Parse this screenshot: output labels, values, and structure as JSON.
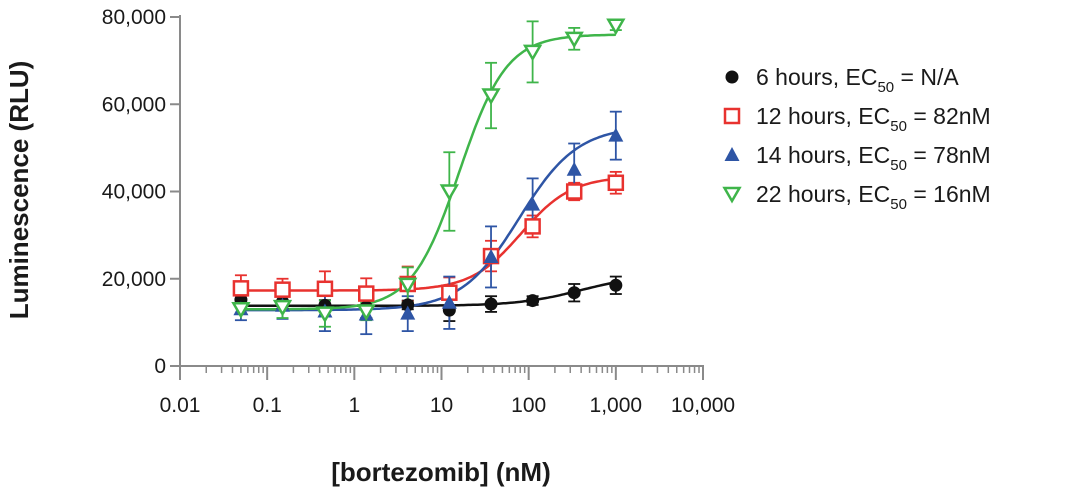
{
  "chart_data": {
    "type": "scatter",
    "xlabel": "[bortezomib] (nM)",
    "ylabel": "Luminescence (RLU)",
    "x_scale": "log",
    "xlim": [
      0.01,
      10000
    ],
    "ylim": [
      0,
      80000
    ],
    "x_ticks": [
      0.01,
      0.1,
      1,
      10,
      100,
      1000,
      10000
    ],
    "x_tick_labels": [
      "0.01",
      "0.1",
      "1",
      "10",
      "100",
      "1,000",
      "10,000"
    ],
    "y_ticks": [
      0,
      20000,
      40000,
      60000,
      80000
    ],
    "y_tick_labels": [
      "0",
      "20,000",
      "40,000",
      "60,000",
      "80,000"
    ],
    "grid": false,
    "legend_position": "right",
    "x": [
      0.05,
      0.15,
      0.46,
      1.37,
      4.1,
      12.3,
      37,
      111,
      333,
      1000
    ],
    "series": [
      {
        "name": "6 hours, EC50 = N/A",
        "legend": {
          "pre": "6 hours, EC",
          "sub": "50",
          "post": " = N/A"
        },
        "marker": "circle-filled",
        "color": "#111111",
        "values": [
          15200,
          14700,
          13900,
          13500,
          14000,
          12800,
          14200,
          15000,
          16800,
          18500
        ],
        "errors": [
          1500,
          1500,
          1200,
          2500,
          1000,
          2500,
          1800,
          1000,
          2000,
          2000
        ],
        "fit": {
          "bottom": 13800,
          "top": 21000,
          "ec50": 400,
          "hill": 1.2
        }
      },
      {
        "name": "12 hours, EC50 = 82nM",
        "legend": {
          "pre": "12 hours, EC",
          "sub": "50",
          "post": " = 82nM"
        },
        "marker": "square-open",
        "color": "#e8322f",
        "values": [
          17800,
          17500,
          17700,
          16600,
          18800,
          16800,
          25200,
          32000,
          40000,
          42000
        ],
        "errors": [
          3000,
          2500,
          4000,
          3500,
          4000,
          3500,
          3500,
          2500,
          2000,
          2500
        ],
        "fit": {
          "bottom": 17300,
          "top": 43500,
          "ec50": 82,
          "hill": 1.5
        }
      },
      {
        "name": "14 hours, EC50 = 78nM",
        "legend": {
          "pre": "14 hours, EC",
          "sub": "50",
          "post": " = 78nM"
        },
        "marker": "triangle-filled",
        "color": "#2e55a5",
        "values": [
          13000,
          13800,
          12500,
          11800,
          12000,
          14500,
          25000,
          37000,
          45000,
          52800
        ],
        "errors": [
          2500,
          3000,
          4500,
          4500,
          4000,
          6000,
          7000,
          6000,
          6000,
          5500
        ],
        "fit": {
          "bottom": 12800,
          "top": 55000,
          "ec50": 78,
          "hill": 1.3
        }
      },
      {
        "name": "22 hours, EC50 = 16nM",
        "legend": {
          "pre": "22 hours, EC",
          "sub": "50",
          "post": " = 16nM"
        },
        "marker": "triangle-down-open",
        "color": "#3fb54a",
        "values": [
          13000,
          13500,
          12000,
          12500,
          18600,
          40000,
          62000,
          72000,
          75000,
          78000
        ],
        "errors": [
          1000,
          2500,
          3000,
          2000,
          4000,
          9000,
          7500,
          7000,
          2500,
          1000
        ],
        "fit": {
          "bottom": 13000,
          "top": 76000,
          "ec50": 16,
          "hill": 1.6
        }
      }
    ]
  }
}
